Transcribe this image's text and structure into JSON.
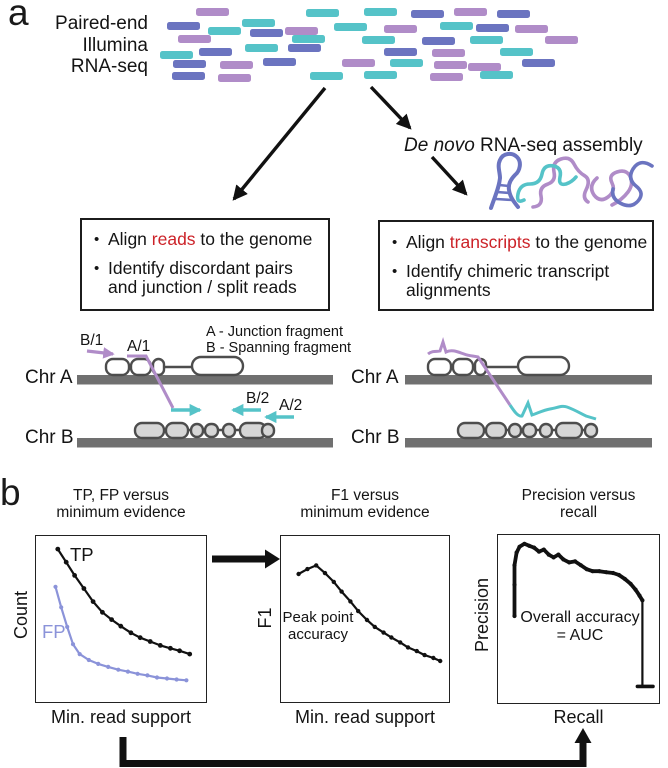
{
  "colors": {
    "teal": "#55c3c8",
    "lavender": "#b08cc8",
    "periwinkle": "#6b74c0",
    "fp_line": "#8b93d9",
    "highlight_red": "#cc2228",
    "chromosome_gray": "#707070",
    "exon_fill": "#d6d6d6",
    "exon_stroke": "#4d4d4d",
    "black": "#111111"
  },
  "panel_a": {
    "label": "a",
    "reads_label": "Paired-end\nIllumina\nRNA-seq",
    "reads": [
      [
        196,
        8,
        "p"
      ],
      [
        306,
        9,
        "t"
      ],
      [
        364,
        8,
        "t"
      ],
      [
        411,
        10,
        "b"
      ],
      [
        454,
        8,
        "p"
      ],
      [
        497,
        10,
        "b"
      ],
      [
        167,
        22,
        "b"
      ],
      [
        242,
        19,
        "t"
      ],
      [
        334,
        23,
        "t"
      ],
      [
        384,
        25,
        "p"
      ],
      [
        440,
        22,
        "t"
      ],
      [
        476,
        24,
        "b"
      ],
      [
        515,
        25,
        "p"
      ],
      [
        208,
        27,
        "t"
      ],
      [
        250,
        29,
        "b"
      ],
      [
        285,
        27,
        "p"
      ],
      [
        178,
        35,
        "p"
      ],
      [
        292,
        35,
        "t"
      ],
      [
        362,
        36,
        "t"
      ],
      [
        422,
        37,
        "b"
      ],
      [
        470,
        36,
        "t"
      ],
      [
        545,
        36,
        "p"
      ],
      [
        160,
        51,
        "t"
      ],
      [
        199,
        48,
        "b"
      ],
      [
        245,
        44,
        "t"
      ],
      [
        288,
        44,
        "b"
      ],
      [
        384,
        48,
        "b"
      ],
      [
        432,
        49,
        "p"
      ],
      [
        500,
        48,
        "t"
      ],
      [
        173,
        60,
        "b"
      ],
      [
        220,
        61,
        "p"
      ],
      [
        263,
        58,
        "b"
      ],
      [
        342,
        59,
        "p"
      ],
      [
        390,
        59,
        "t"
      ],
      [
        434,
        61,
        "p"
      ],
      [
        468,
        63,
        "p"
      ],
      [
        522,
        59,
        "b"
      ],
      [
        172,
        72,
        "b"
      ],
      [
        218,
        74,
        "p"
      ],
      [
        310,
        72,
        "t"
      ],
      [
        364,
        71,
        "t"
      ],
      [
        430,
        73,
        "p"
      ],
      [
        480,
        71,
        "t"
      ]
    ],
    "denovo": {
      "italic": "De novo",
      "rest": " RNA-seq assembly"
    },
    "left_box": {
      "bullet1": {
        "pre": "Align ",
        "highlight": "reads",
        "post": " to the genome"
      },
      "bullet2": "Identify discordant pairs and junction / split reads"
    },
    "right_box": {
      "bullet1": {
        "pre": "Align ",
        "highlight": "transcripts",
        "post": " to the genome"
      },
      "bullet2": "Identify chimeric transcript alignments"
    },
    "legend": {
      "line1": "A - Junction fragment",
      "line2": "B - Spanning fragment"
    },
    "fragment_labels": {
      "b1": "B/1",
      "a1": "A/1",
      "b2": "B/2",
      "a2": "A/2"
    },
    "chromosomes": {
      "left_a": "Chr A",
      "left_b": "Chr B",
      "right_a": "Chr A",
      "right_b": "Chr B"
    }
  },
  "panel_b": {
    "label": "b",
    "plots": [
      {
        "title": "TP, FP versus\nminimum evidence",
        "xlabel": "Min. read support",
        "ylabel": "Count",
        "series_labels": {
          "tp": "TP",
          "fp": "FP"
        }
      },
      {
        "title": "F1 versus\nminimum evidence",
        "xlabel": "Min. read support",
        "ylabel": "F1",
        "annotation": "Peak point\naccuracy"
      },
      {
        "title": "Precision versus\nrecall",
        "xlabel": "Recall",
        "ylabel": "Precision",
        "annotation": "Overall accuracy\n= AUC"
      }
    ]
  },
  "chart_data": [
    {
      "type": "line",
      "title": "TP, FP versus minimum evidence",
      "xlabel": "Min. read support",
      "ylabel": "Count",
      "note": "schematic plot, no tick values; point coordinates normalized 0-1 (x=min read support, y=count)",
      "legend_position": "inline labels",
      "series": [
        {
          "name": "TP",
          "color": "#111111",
          "lw": 2.2,
          "marker_r": 2.4,
          "points": [
            [
              0.13,
              0.92
            ],
            [
              0.18,
              0.84
            ],
            [
              0.23,
              0.76
            ],
            [
              0.285,
              0.68
            ],
            [
              0.34,
              0.6
            ],
            [
              0.395,
              0.535
            ],
            [
              0.45,
              0.49
            ],
            [
              0.505,
              0.45
            ],
            [
              0.565,
              0.41
            ],
            [
              0.62,
              0.38
            ],
            [
              0.68,
              0.357
            ],
            [
              0.74,
              0.333
            ],
            [
              0.8,
              0.315
            ],
            [
              0.855,
              0.3
            ],
            [
              0.915,
              0.28
            ]
          ]
        },
        {
          "name": "FP",
          "color": "#8b93d9",
          "lw": 2.2,
          "marker_r": 2.1,
          "points": [
            [
              0.116,
              0.69
            ],
            [
              0.15,
              0.565
            ],
            [
              0.186,
              0.446
            ],
            [
              0.22,
              0.34
            ],
            [
              0.26,
              0.28
            ],
            [
              0.314,
              0.244
            ],
            [
              0.37,
              0.22
            ],
            [
              0.43,
              0.202
            ],
            [
              0.49,
              0.185
            ],
            [
              0.547,
              0.173
            ],
            [
              0.605,
              0.16
            ],
            [
              0.663,
              0.15
            ],
            [
              0.72,
              0.137
            ],
            [
              0.78,
              0.131
            ],
            [
              0.837,
              0.125
            ],
            [
              0.895,
              0.12
            ]
          ]
        }
      ]
    },
    {
      "type": "line",
      "title": "F1 versus minimum evidence",
      "xlabel": "Min. read support",
      "ylabel": "F1",
      "note": "schematic plot; curve peaks near left (peak point accuracy) then declines",
      "series": [
        {
          "name": "F1",
          "color": "#111111",
          "lw": 2.2,
          "marker_r": 2.2,
          "points": [
            [
              0.106,
              0.768
            ],
            [
              0.159,
              0.798
            ],
            [
              0.212,
              0.821
            ],
            [
              0.265,
              0.774
            ],
            [
              0.318,
              0.72
            ],
            [
              0.365,
              0.661
            ],
            [
              0.418,
              0.601
            ],
            [
              0.465,
              0.542
            ],
            [
              0.518,
              0.488
            ],
            [
              0.565,
              0.446
            ],
            [
              0.618,
              0.411
            ],
            [
              0.665,
              0.381
            ],
            [
              0.718,
              0.351
            ],
            [
              0.765,
              0.321
            ],
            [
              0.818,
              0.298
            ],
            [
              0.865,
              0.274
            ],
            [
              0.918,
              0.256
            ],
            [
              0.959,
              0.238
            ]
          ]
        }
      ]
    },
    {
      "type": "line",
      "title": "Precision versus recall",
      "xlabel": "Recall",
      "ylabel": "Precision",
      "note": "schematic precision-recall curve; area under curve = overall accuracy (AUC)",
      "series": [
        {
          "name": "Precision-recall curve",
          "color": "#111111",
          "lw": 3.8,
          "marker_r": 2.1,
          "points": [
            [
              0.104,
              0.512
            ],
            [
              0.104,
              0.7
            ],
            [
              0.104,
              0.818
            ],
            [
              0.117,
              0.894
            ],
            [
              0.135,
              0.929
            ],
            [
              0.166,
              0.947
            ],
            [
              0.196,
              0.935
            ],
            [
              0.227,
              0.924
            ],
            [
              0.258,
              0.9
            ],
            [
              0.288,
              0.912
            ],
            [
              0.319,
              0.882
            ],
            [
              0.35,
              0.865
            ],
            [
              0.38,
              0.882
            ],
            [
              0.411,
              0.853
            ],
            [
              0.448,
              0.835
            ],
            [
              0.485,
              0.841
            ],
            [
              0.521,
              0.818
            ],
            [
              0.558,
              0.794
            ],
            [
              0.595,
              0.782
            ],
            [
              0.638,
              0.782
            ],
            [
              0.681,
              0.776
            ],
            [
              0.724,
              0.771
            ],
            [
              0.761,
              0.759
            ],
            [
              0.798,
              0.735
            ],
            [
              0.834,
              0.706
            ],
            [
              0.865,
              0.671
            ],
            [
              0.89,
              0.635
            ],
            [
              0.908,
              0.606
            ]
          ]
        },
        {
          "name": "right-edge drop",
          "color": "#111111",
          "lw": 2.2,
          "marker_r": 0,
          "points": [
            [
              0.908,
              0.606
            ],
            [
              0.908,
              0.094
            ]
          ]
        },
        {
          "name": "end tick",
          "color": "#111111",
          "lw": 3.6,
          "marker_r": 0,
          "points": [
            [
              0.877,
              0.088
            ],
            [
              0.975,
              0.088
            ]
          ]
        }
      ]
    }
  ]
}
